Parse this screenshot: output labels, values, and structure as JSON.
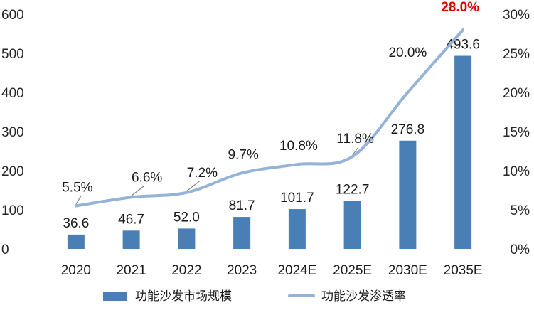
{
  "chart_data": {
    "type": "bar",
    "categories": [
      "2020",
      "2021",
      "2022",
      "2023",
      "2024E",
      "2025E",
      "2030E",
      "2035E"
    ],
    "series": [
      {
        "name": "功能沙发市场规模",
        "type": "bar",
        "axis": "left",
        "values": [
          36.6,
          46.7,
          52.0,
          81.7,
          101.7,
          122.7,
          276.8,
          493.6
        ],
        "labels": [
          "36.6",
          "46.7",
          "52.0",
          "81.7",
          "101.7",
          "122.7",
          "276.8",
          "493.6"
        ],
        "color": "#4a7fb5"
      },
      {
        "name": "功能沙发渗透率",
        "type": "line",
        "axis": "right",
        "values": [
          5.5,
          6.6,
          7.2,
          9.7,
          10.8,
          11.8,
          20.0,
          28.0
        ],
        "labels": [
          "5.5%",
          "6.6%",
          "7.2%",
          "9.7%",
          "10.8%",
          "11.8%",
          "20.0%",
          "28.0%"
        ],
        "color": "#95b3d7",
        "highlight_color": "#e00000"
      }
    ],
    "y_left": {
      "range": [
        0,
        600
      ],
      "ticks": [
        "0",
        "100",
        "200",
        "300",
        "400",
        "500",
        "600"
      ]
    },
    "y_right": {
      "range": [
        0,
        30
      ],
      "ticks": [
        "0%",
        "5%",
        "10%",
        "15%",
        "20%",
        "25%",
        "30%"
      ]
    },
    "grid": false,
    "legend": "bottom"
  }
}
